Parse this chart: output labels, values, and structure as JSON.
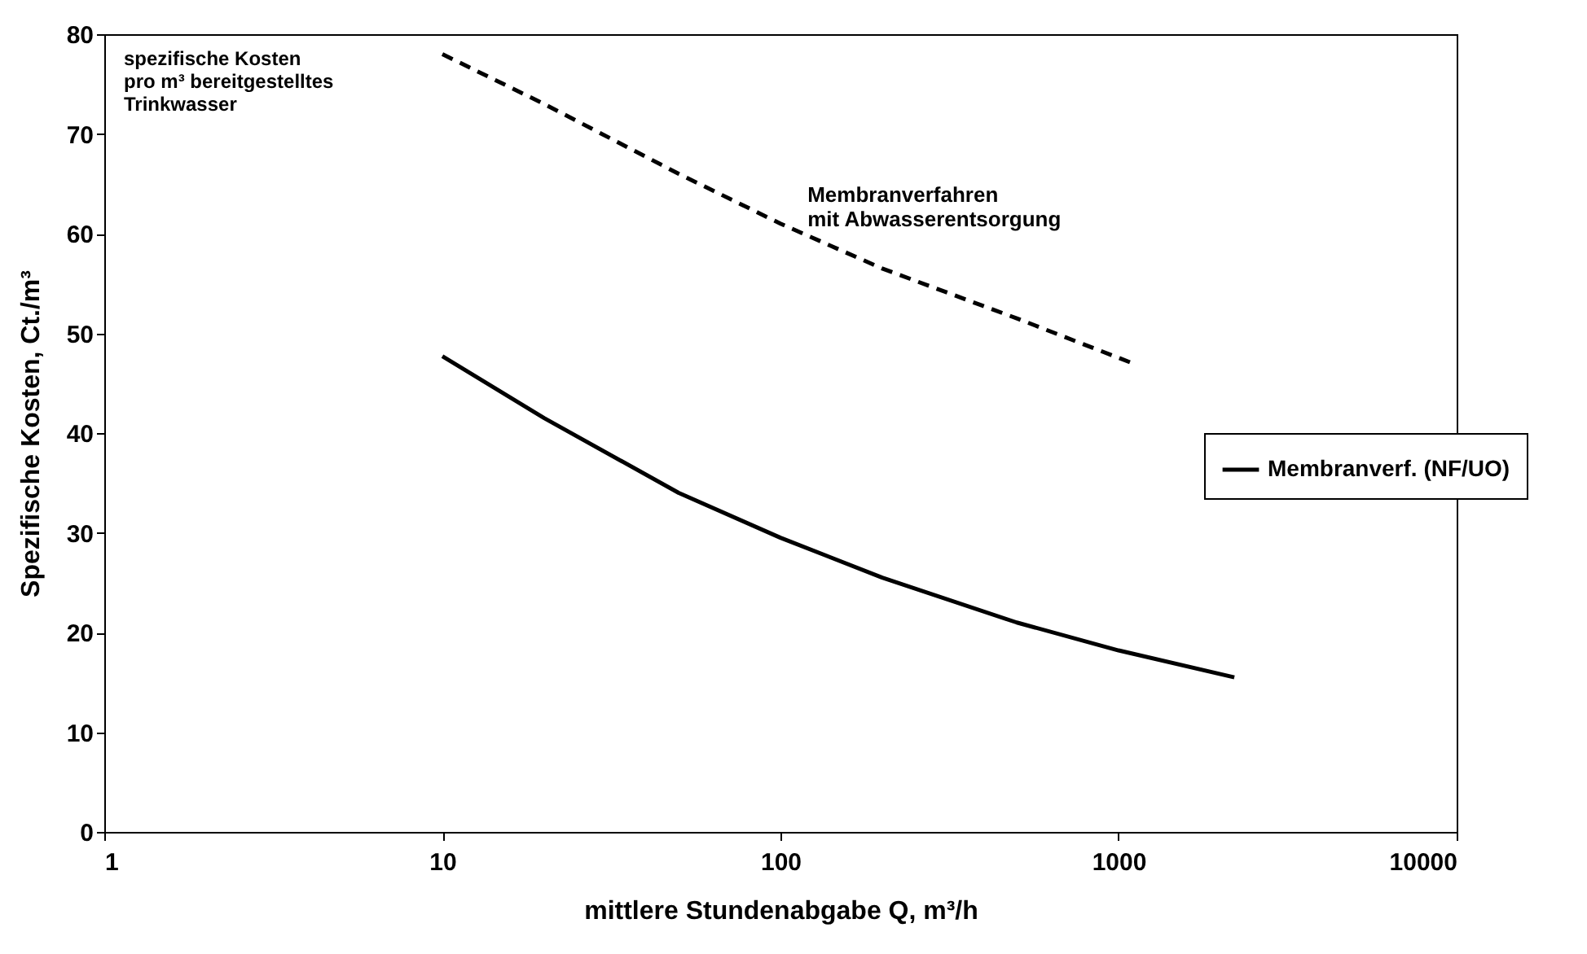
{
  "chart_data": {
    "type": "line",
    "xlabel": "mittlere Stundenabgabe Q, m³/h",
    "ylabel": "Spezifische Kosten, Ct./m³",
    "log": "x",
    "xlim": [
      1,
      10000
    ],
    "xticks": [
      1,
      10,
      100,
      1000,
      10000
    ],
    "ylim": [
      0,
      80
    ],
    "yticks": [
      0,
      10,
      20,
      30,
      40,
      50,
      60,
      70,
      80
    ],
    "grid": false,
    "legend": "right",
    "marker": "none",
    "series": [
      {
        "name": "Membranverf. (NF/UO)",
        "color": "#000000",
        "line_style": "solid",
        "x": [
          10,
          20,
          50,
          100,
          200,
          500,
          1000,
          2200
        ],
        "values": [
          47.7,
          41.5,
          34,
          29.5,
          25.5,
          21,
          18.2,
          15.5
        ]
      },
      {
        "color": "#000000",
        "line_style": "dashed",
        "x": [
          10,
          20,
          50,
          100,
          200,
          500,
          1100
        ],
        "values": [
          78,
          73,
          66,
          61,
          56.5,
          51.5,
          47
        ]
      }
    ],
    "annotations": [
      "spezifische Kosten\npro m³ bereitgestelltes\nTrinkwasser",
      "Membranverfahren\nmit Abwasserentsorgung"
    ]
  }
}
